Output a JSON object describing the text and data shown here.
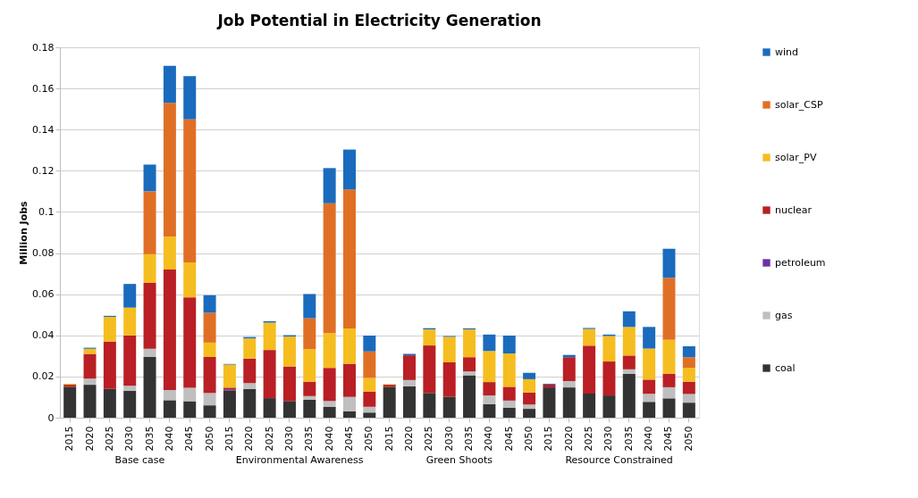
{
  "chart_data": {
    "type": "bar",
    "stacked": true,
    "title": "Job Potential in Electricity Generation",
    "ylabel": "Million Jobs",
    "categories": [
      "2015",
      "2020",
      "2025",
      "2030",
      "2035",
      "2040",
      "2045",
      "2050",
      "2015",
      "2020",
      "2025",
      "2030",
      "2035",
      "2040",
      "2045",
      "2050",
      "2015",
      "2020",
      "2025",
      "2030",
      "2035",
      "2040",
      "2045",
      "2050",
      "2015",
      "2020",
      "2025",
      "2030",
      "2035",
      "2040",
      "2045",
      "2050"
    ],
    "annotations": [
      "Base case",
      "Environmental Awareness",
      "Green Shoots",
      "Resource Constrained"
    ],
    "ylim": [
      0,
      0.18
    ],
    "yticks": [
      0,
      0.02,
      0.04,
      0.06,
      0.08,
      0.1,
      0.12,
      0.14,
      0.16,
      0.18
    ],
    "grid": "y",
    "legend": "right",
    "series": [
      {
        "name": "coal",
        "color": "#333333",
        "values": [
          0.015,
          0.016,
          0.014,
          0.013,
          0.0295,
          0.0085,
          0.008,
          0.006,
          0.0133,
          0.014,
          0.0095,
          0.0081,
          0.0087,
          0.0052,
          0.0031,
          0.0025,
          0.015,
          0.0152,
          0.012,
          0.0102,
          0.0206,
          0.0066,
          0.0049,
          0.0043,
          0.0147,
          0.0147,
          0.0117,
          0.0108,
          0.0213,
          0.0077,
          0.0094,
          0.0073
        ]
      },
      {
        "name": "gas",
        "color": "#bfbfbf",
        "values": [
          0,
          0.003,
          0,
          0.0025,
          0.004,
          0.005,
          0.0065,
          0.006,
          0,
          0.0028,
          0,
          0,
          0.0018,
          0.0029,
          0.007,
          0.0028,
          0,
          0.0031,
          0,
          0,
          0.0019,
          0.0042,
          0.0034,
          0.0021,
          0,
          0.0031,
          0,
          0,
          0.0022,
          0.0039,
          0.0054,
          0.0042
        ]
      },
      {
        "name": "petroleum",
        "color": "#7030a0",
        "values": [
          0,
          0,
          0,
          0,
          0,
          0,
          0,
          0,
          0.0005,
          0,
          0,
          0,
          0,
          0,
          0,
          0,
          0,
          0,
          0,
          0,
          0,
          0,
          0,
          0,
          0,
          0,
          0,
          0,
          0,
          0,
          0,
          0
        ]
      },
      {
        "name": "nuclear",
        "color": "#b91f24",
        "values": [
          0.001,
          0.012,
          0.023,
          0.0245,
          0.032,
          0.0585,
          0.044,
          0.0175,
          0.0008,
          0.0119,
          0.0234,
          0.0168,
          0.007,
          0.0161,
          0.0161,
          0.0073,
          0.001,
          0.012,
          0.0231,
          0.0167,
          0.0069,
          0.0065,
          0.0067,
          0.0058,
          0.0014,
          0.0116,
          0.0233,
          0.0165,
          0.0067,
          0.0069,
          0.0065,
          0.006
        ]
      },
      {
        "name": "solar_PV",
        "color": "#f5bd1f",
        "values": [
          0.0005,
          0.0025,
          0.012,
          0.0135,
          0.014,
          0.016,
          0.017,
          0.007,
          0.0112,
          0.0098,
          0.0133,
          0.0145,
          0.0158,
          0.0169,
          0.0172,
          0.0067,
          0.0003,
          0,
          0.0078,
          0.0124,
          0.0135,
          0.0151,
          0.0162,
          0.0065,
          0,
          0,
          0.0081,
          0.0124,
          0.0139,
          0.0151,
          0.0165,
          0.0067
        ]
      },
      {
        "name": "solar_CSP",
        "color": "#e06f26",
        "values": [
          0,
          0,
          0,
          0,
          0.0305,
          0.065,
          0.0695,
          0.0145,
          0,
          0,
          0,
          0,
          0.015,
          0.0631,
          0.0675,
          0.0129,
          0,
          0,
          0,
          0,
          0,
          0,
          0,
          0,
          0,
          0,
          0,
          0,
          0,
          0,
          0.0302,
          0.0052
        ]
      },
      {
        "name": "wind",
        "color": "#1a6bbd",
        "values": [
          0,
          0.0005,
          0.0005,
          0.0115,
          0.013,
          0.018,
          0.021,
          0.0085,
          0.0003,
          0.0007,
          0.0007,
          0.0007,
          0.0118,
          0.0171,
          0.0194,
          0.0077,
          0,
          0.0007,
          0.0006,
          0.0004,
          0.0005,
          0.008,
          0.0087,
          0.0031,
          0.0004,
          0.0011,
          0.0005,
          0.0007,
          0.0076,
          0.0105,
          0.0141,
          0.0053
        ]
      }
    ]
  }
}
